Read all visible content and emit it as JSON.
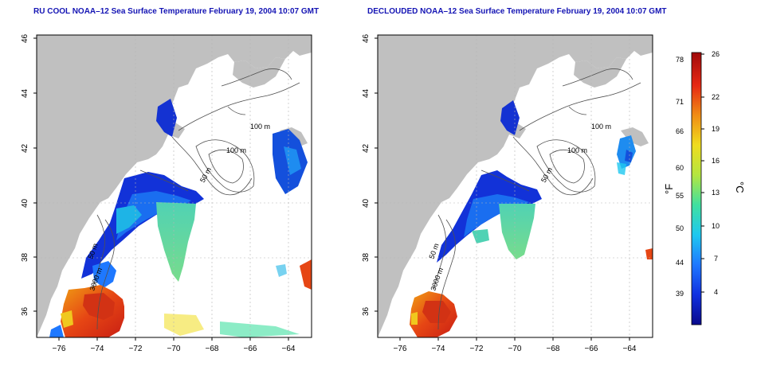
{
  "left_panel": {
    "title": "RU COOL NOAA–12 Sea Surface Temperature February 19, 2004 10:07 GMT",
    "contour_labels": [
      "100 m",
      "100 m",
      "50 m",
      "50 m",
      "3000 m"
    ]
  },
  "right_panel": {
    "title": "DECLOUDED NOAA–12 Sea Surface Temperature February 19, 2004 10:07 GMT",
    "contour_labels": [
      "100 m",
      "100 m",
      "50 m",
      "50 m",
      "3000 m"
    ]
  },
  "axes": {
    "x_ticks": [
      "−76",
      "−74",
      "−72",
      "−70",
      "−68",
      "−66",
      "−64"
    ],
    "y_ticks": [
      "36",
      "38",
      "40",
      "42",
      "44",
      "46"
    ]
  },
  "colorbar": {
    "fahrenheit_label": "°F",
    "celsius_label": "°C",
    "fahrenheit_ticks": [
      "78",
      "71",
      "66",
      "60",
      "55",
      "50",
      "44",
      "39"
    ],
    "celsius_ticks": [
      "26",
      "22",
      "19",
      "16",
      "13",
      "10",
      "7",
      "4"
    ],
    "colors": [
      "#0a0a8c",
      "#1030e0",
      "#1e78ff",
      "#1ec8f0",
      "#40e0a0",
      "#b4e640",
      "#f0dc1e",
      "#f08c14",
      "#e62814",
      "#a00a0a"
    ]
  },
  "colors": {
    "land": "#c0c0c0",
    "frame": "#000000",
    "title": "#1414b4"
  }
}
